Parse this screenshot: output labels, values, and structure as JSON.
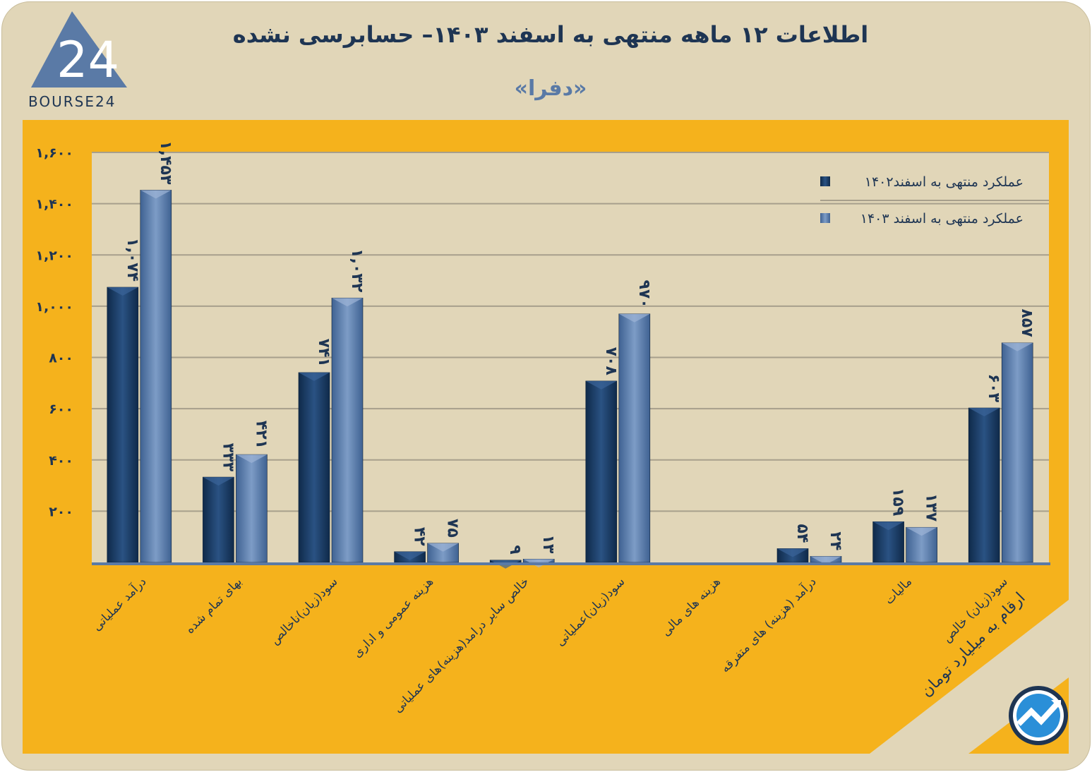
{
  "header": {
    "title": "اطلاعات ۱۲ ماهه منتهی به اسفند  ۱۴۰۳– حسابرسی نشده",
    "subtitle": "«دفرا»",
    "logo_text": "BOURSE24"
  },
  "note": "ارقام به میلیارد تومان",
  "colors": {
    "panel": "#f5b21c",
    "plot_bg": "#e1d6b8",
    "series_1402": "#173a63",
    "series_1403": "#5a7aa6",
    "text": "#1e3553"
  },
  "chart_data": {
    "type": "bar",
    "categories": [
      "درآمد عملیاتی",
      "بهای تمام شده",
      "سود(زیان)ناخالص",
      "هزینه عمومی و اداری",
      "خالص سایر درامد(هزینه)های عملیاتی",
      "سود(زیان)عملیاتی",
      "هزینه های مالی",
      "درآمد (هزینه) های متفرقه",
      "مالیات",
      "سود(زیان) خالص"
    ],
    "series": [
      {
        "name": "عملکرد منتهی به اسفند۱۴۰۲",
        "values": [
          1074,
          333,
          741,
          42,
          9,
          708,
          null,
          54,
          159,
          603
        ]
      },
      {
        "name": "عملکرد منتهی به اسفند ۱۴۰۳",
        "values": [
          1453,
          421,
          1032,
          75,
          13,
          970,
          null,
          24,
          137,
          857
        ]
      }
    ],
    "yticks": [
      "۲۰۰",
      "۴۰۰",
      "۶۰۰",
      "۸۰۰",
      "۱,۰۰۰",
      "۱,۲۰۰",
      "۱,۴۰۰",
      "۱,۶۰۰"
    ],
    "ylim": [
      0,
      1600
    ],
    "grid": true,
    "legend": "top-right"
  }
}
